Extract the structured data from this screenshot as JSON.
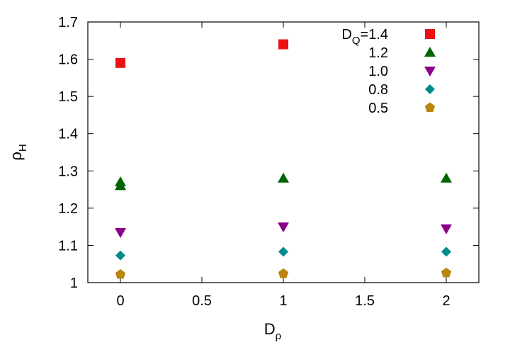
{
  "chart_data": {
    "type": "scatter",
    "title": "",
    "xlabel": {
      "main": "D",
      "sub": "ρ"
    },
    "ylabel": {
      "main": "ρ",
      "sub": "H"
    },
    "xlim": [
      -0.2,
      2.2
    ],
    "ylim": [
      1.0,
      1.7
    ],
    "xticks": [
      0,
      0.5,
      1,
      1.5,
      2
    ],
    "xtick_labels": [
      "0",
      "0.5",
      "1",
      "1.5",
      "2"
    ],
    "yticks": [
      1.0,
      1.1,
      1.2,
      1.3,
      1.4,
      1.5,
      1.6,
      1.7
    ],
    "ytick_labels": [
      "1",
      "1.1",
      "1.2",
      "1.3",
      "1.4",
      "1.5",
      "1.6",
      "1.7"
    ],
    "grid": false,
    "legend_position": "top-right",
    "legend_prefix": {
      "main": "D",
      "sub": "Q",
      "suffix": "=1.4"
    },
    "series": [
      {
        "name": "1.4",
        "legend_label": "D_Q=1.4",
        "marker": "square",
        "color": "#ee1111",
        "points": [
          [
            0,
            1.59
          ],
          [
            1,
            1.64
          ]
        ]
      },
      {
        "name": "1.2",
        "legend_label": "1.2",
        "marker": "triangle-up",
        "color": "#006400",
        "points": [
          [
            0,
            1.27
          ],
          [
            0,
            1.26
          ],
          [
            1,
            1.28
          ],
          [
            2,
            1.28
          ]
        ]
      },
      {
        "name": "1.0",
        "legend_label": "1.0",
        "marker": "triangle-down",
        "color": "#8b008b",
        "points": [
          [
            0,
            1.135
          ],
          [
            1,
            1.15
          ],
          [
            2,
            1.145
          ]
        ]
      },
      {
        "name": "0.8",
        "legend_label": "0.8",
        "marker": "diamond",
        "color": "#008b8b",
        "points": [
          [
            0,
            1.073
          ],
          [
            1,
            1.083
          ],
          [
            2,
            1.083
          ]
        ]
      },
      {
        "name": "0.5",
        "legend_label": "0.5",
        "marker": "pentagon",
        "color": "#b8860b",
        "points": [
          [
            0,
            1.022
          ],
          [
            1,
            1.024
          ],
          [
            2,
            1.026
          ]
        ]
      }
    ]
  }
}
